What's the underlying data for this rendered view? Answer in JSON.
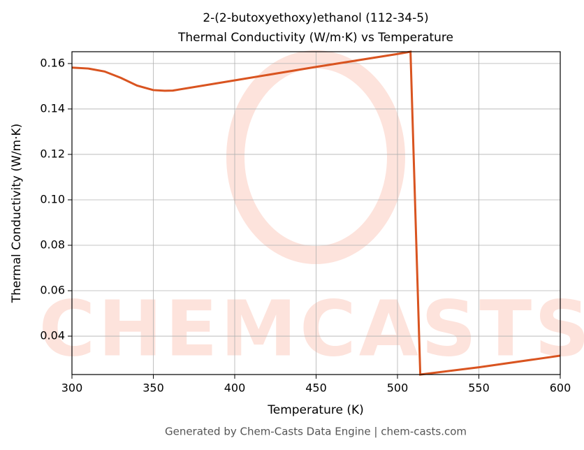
{
  "chart_data": {
    "type": "line",
    "title": "2-(2-butoxyethoxy)ethanol (112-34-5)",
    "subtitle": "Thermal Conductivity (W/m·K) vs Temperature",
    "x_label": "Temperature (K)",
    "y_label": "Thermal Conductivity (W/m·K)",
    "watermark": "CHEMCASTS",
    "footer": "Generated by Chem-Casts Data Engine | chem-casts.com",
    "x": [
      300,
      310,
      320,
      330,
      340,
      350,
      357,
      362,
      400,
      450,
      500,
      508,
      514,
      550,
      600
    ],
    "series": [
      {
        "name": "Thermal Conductivity",
        "color": "#d95420",
        "values": [
          0.1582,
          0.1578,
          0.1565,
          0.1537,
          0.1503,
          0.1483,
          0.148,
          0.1481,
          0.1526,
          0.1585,
          0.1642,
          0.1652,
          0.0231,
          0.0263,
          0.0314
        ]
      }
    ],
    "xlim": [
      300,
      600
    ],
    "xticks": [
      300,
      350,
      400,
      450,
      500,
      550,
      600
    ],
    "ylim": [
      0.0231,
      0.1652
    ],
    "yticks": [
      0.04,
      0.06,
      0.08,
      {
        "value": 0.1,
        "label": "0.10"
      },
      0.12,
      0.14,
      0.16
    ],
    "grid": true
  }
}
